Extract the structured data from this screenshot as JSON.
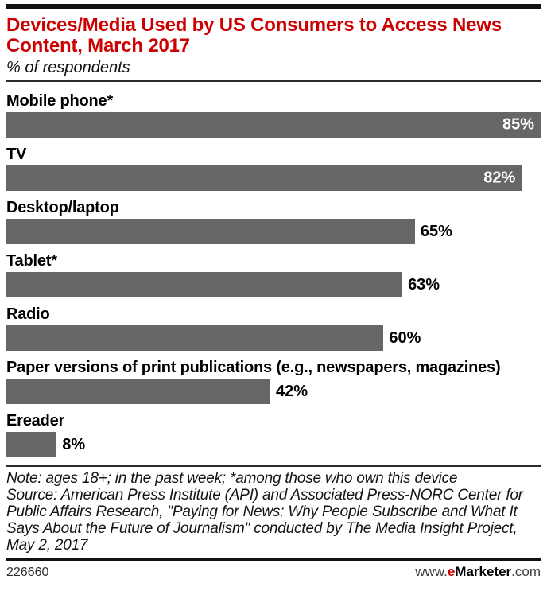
{
  "header": {
    "title": "Devices/Media Used by US Consumers to Access News Content, March 2017",
    "subtitle": "% of respondents"
  },
  "chart_data": {
    "type": "bar",
    "orientation": "horizontal",
    "title": "Devices/Media Used by US Consumers to Access News Content, March 2017",
    "subtitle": "% of respondents",
    "categories": [
      "Mobile phone*",
      "TV",
      "Desktop/laptop",
      "Tablet*",
      "Radio",
      "Paper versions of print publications (e.g., newspapers, magazines)",
      "Ereader"
    ],
    "values": [
      85,
      82,
      65,
      63,
      60,
      42,
      8
    ],
    "value_suffix": "%",
    "xlim": [
      0,
      85
    ],
    "grid": false,
    "legend": "none",
    "bar_color": "#666666",
    "value_label_inside_color": "#ffffff",
    "value_label_outside_color": "#000000"
  },
  "footnote": {
    "note": "Note: ages 18+; in the past week; *among those who own this device",
    "source": "Source: American Press Institute (API) and Associated Press-NORC Center for Public Affairs Research, \"Paying for News: Why People Subscribe and What It Says About the Future of Journalism\" conducted by The Media Insight Project, May 2, 2017"
  },
  "footer": {
    "chart_id": "226660",
    "website_prefix": "www.",
    "website_brand_e": "e",
    "website_brand_rest": "Marketer",
    "website_suffix": ".com"
  },
  "colors": {
    "accent_red": "#cc0000",
    "bar_gray": "#666666",
    "text_black": "#1a1a1a"
  }
}
